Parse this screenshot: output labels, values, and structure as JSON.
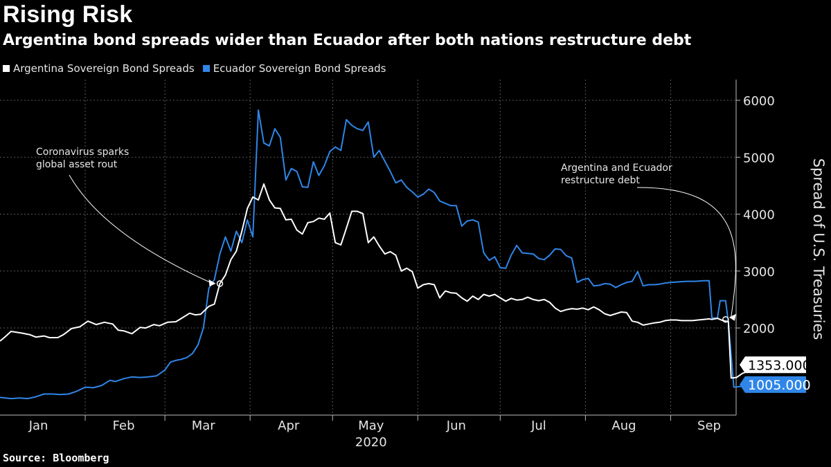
{
  "title": "Rising Risk",
  "subtitle": "Argentina bond spreads wider than Ecuador after both nations restructure debt",
  "source": "Source: Bloomberg",
  "colors": {
    "background": "#000000",
    "argentina": "#ffffff",
    "ecuador": "#2f86e8",
    "grid": "#5a5a5a"
  },
  "chart_data": {
    "type": "line",
    "ylabel": "Spread of U.S. Treasuries",
    "xlabel": "",
    "ylim": [
      600,
      6300
    ],
    "yticks": [
      2000,
      3000,
      4000,
      5000,
      6000
    ],
    "yaxis_position": "right",
    "grid": true,
    "legend_position": "top-left",
    "year_label": "2020",
    "xticks": [
      {
        "label": "Jan",
        "date": "2020-01-15"
      },
      {
        "label": "Feb",
        "date": "2020-02-15"
      },
      {
        "label": "Mar",
        "date": "2020-03-15"
      },
      {
        "label": "Apr",
        "date": "2020-04-15"
      },
      {
        "label": "May",
        "date": "2020-05-15"
      },
      {
        "label": "Jun",
        "date": "2020-06-15"
      },
      {
        "label": "Jul",
        "date": "2020-07-15"
      },
      {
        "label": "Aug",
        "date": "2020-08-15"
      },
      {
        "label": "Sep",
        "date": "2020-09-15"
      }
    ],
    "series": [
      {
        "name": "Argentina Sovereign Bond Spreads",
        "color": "#ffffff",
        "last_value_label": "1353.000",
        "points": [
          [
            "2020-01-01",
            1770
          ],
          [
            "2020-01-03",
            1850
          ],
          [
            "2020-01-05",
            1940
          ],
          [
            "2020-01-09",
            1910
          ],
          [
            "2020-01-12",
            1880
          ],
          [
            "2020-01-14",
            1840
          ],
          [
            "2020-01-17",
            1860
          ],
          [
            "2020-01-19",
            1830
          ],
          [
            "2020-01-22",
            1830
          ],
          [
            "2020-01-24",
            1880
          ],
          [
            "2020-01-27",
            1990
          ],
          [
            "2020-01-30",
            2020
          ],
          [
            "2020-02-02",
            2120
          ],
          [
            "2020-02-05",
            2060
          ],
          [
            "2020-02-08",
            2100
          ],
          [
            "2020-02-11",
            2070
          ],
          [
            "2020-02-13",
            1960
          ],
          [
            "2020-02-15",
            1950
          ],
          [
            "2020-02-18",
            1900
          ],
          [
            "2020-02-21",
            2010
          ],
          [
            "2020-02-23",
            2000
          ],
          [
            "2020-02-26",
            2060
          ],
          [
            "2020-02-28",
            2040
          ],
          [
            "2020-03-02",
            2100
          ],
          [
            "2020-03-05",
            2110
          ],
          [
            "2020-03-07",
            2170
          ],
          [
            "2020-03-10",
            2260
          ],
          [
            "2020-03-12",
            2230
          ],
          [
            "2020-03-14",
            2240
          ],
          [
            "2020-03-17",
            2380
          ],
          [
            "2020-03-19",
            2420
          ],
          [
            "2020-03-21",
            2780
          ],
          [
            "2020-03-23",
            2930
          ],
          [
            "2020-03-25",
            3200
          ],
          [
            "2020-03-27",
            3350
          ],
          [
            "2020-03-29",
            3700
          ],
          [
            "2020-03-31",
            4100
          ],
          [
            "2020-04-02",
            4300
          ],
          [
            "2020-04-04",
            4250
          ],
          [
            "2020-04-06",
            4530
          ],
          [
            "2020-04-08",
            4250
          ],
          [
            "2020-04-10",
            4110
          ],
          [
            "2020-04-12",
            4100
          ],
          [
            "2020-04-14",
            3900
          ],
          [
            "2020-04-16",
            3910
          ],
          [
            "2020-04-18",
            3720
          ],
          [
            "2020-04-20",
            3650
          ],
          [
            "2020-04-22",
            3850
          ],
          [
            "2020-04-24",
            3870
          ],
          [
            "2020-04-26",
            3930
          ],
          [
            "2020-04-28",
            3910
          ],
          [
            "2020-04-30",
            4020
          ],
          [
            "2020-05-02",
            3500
          ],
          [
            "2020-05-04",
            3460
          ],
          [
            "2020-05-06",
            3750
          ],
          [
            "2020-05-08",
            4050
          ],
          [
            "2020-05-10",
            4050
          ],
          [
            "2020-05-12",
            4010
          ],
          [
            "2020-05-14",
            3500
          ],
          [
            "2020-05-16",
            3600
          ],
          [
            "2020-05-18",
            3440
          ],
          [
            "2020-05-20",
            3300
          ],
          [
            "2020-05-22",
            3340
          ],
          [
            "2020-05-24",
            3280
          ],
          [
            "2020-05-26",
            3000
          ],
          [
            "2020-05-28",
            3050
          ],
          [
            "2020-05-30",
            2990
          ],
          [
            "2020-06-01",
            2700
          ],
          [
            "2020-06-03",
            2760
          ],
          [
            "2020-06-05",
            2780
          ],
          [
            "2020-06-07",
            2760
          ],
          [
            "2020-06-09",
            2530
          ],
          [
            "2020-06-11",
            2650
          ],
          [
            "2020-06-13",
            2620
          ],
          [
            "2020-06-15",
            2610
          ],
          [
            "2020-06-17",
            2530
          ],
          [
            "2020-06-19",
            2470
          ],
          [
            "2020-06-21",
            2560
          ],
          [
            "2020-06-23",
            2500
          ],
          [
            "2020-06-25",
            2590
          ],
          [
            "2020-06-27",
            2560
          ],
          [
            "2020-06-29",
            2590
          ],
          [
            "2020-07-01",
            2530
          ],
          [
            "2020-07-03",
            2470
          ],
          [
            "2020-07-05",
            2520
          ],
          [
            "2020-07-07",
            2490
          ],
          [
            "2020-07-09",
            2500
          ],
          [
            "2020-07-11",
            2540
          ],
          [
            "2020-07-13",
            2500
          ],
          [
            "2020-07-15",
            2480
          ],
          [
            "2020-07-17",
            2500
          ],
          [
            "2020-07-19",
            2450
          ],
          [
            "2020-07-21",
            2350
          ],
          [
            "2020-07-23",
            2290
          ],
          [
            "2020-07-25",
            2320
          ],
          [
            "2020-07-27",
            2340
          ],
          [
            "2020-07-29",
            2330
          ],
          [
            "2020-07-31",
            2350
          ],
          [
            "2020-08-02",
            2320
          ],
          [
            "2020-08-04",
            2370
          ],
          [
            "2020-08-06",
            2320
          ],
          [
            "2020-08-08",
            2250
          ],
          [
            "2020-08-10",
            2220
          ],
          [
            "2020-08-12",
            2250
          ],
          [
            "2020-08-14",
            2280
          ],
          [
            "2020-08-16",
            2270
          ],
          [
            "2020-08-18",
            2120
          ],
          [
            "2020-08-20",
            2100
          ],
          [
            "2020-08-22",
            2050
          ],
          [
            "2020-08-24",
            2070
          ],
          [
            "2020-08-26",
            2090
          ],
          [
            "2020-08-28",
            2100
          ],
          [
            "2020-08-30",
            2130
          ],
          [
            "2020-09-01",
            2140
          ],
          [
            "2020-09-03",
            2140
          ],
          [
            "2020-09-05",
            2130
          ],
          [
            "2020-09-07",
            2130
          ],
          [
            "2020-09-09",
            2130
          ],
          [
            "2020-09-11",
            2140
          ],
          [
            "2020-09-13",
            2150
          ],
          [
            "2020-09-15",
            2160
          ],
          [
            "2020-09-16",
            2150
          ],
          [
            "2020-09-18",
            2170
          ],
          [
            "2020-09-20",
            2130
          ],
          [
            "2020-09-22",
            2110
          ],
          [
            "2020-09-23",
            1120
          ],
          [
            "2020-09-25",
            1130
          ],
          [
            "2020-09-27",
            1200
          ],
          [
            "2020-09-30",
            1260
          ],
          [
            "2020-10-02",
            1353
          ]
        ]
      },
      {
        "name": "Ecuador Sovereign Bond Spreads",
        "color": "#2f86e8",
        "last_value_label": "1005.000",
        "points": [
          [
            "2020-01-01",
            780
          ],
          [
            "2020-01-03",
            770
          ],
          [
            "2020-01-05",
            760
          ],
          [
            "2020-01-08",
            770
          ],
          [
            "2020-01-11",
            760
          ],
          [
            "2020-01-14",
            790
          ],
          [
            "2020-01-17",
            840
          ],
          [
            "2020-01-20",
            840
          ],
          [
            "2020-01-23",
            830
          ],
          [
            "2020-01-26",
            840
          ],
          [
            "2020-01-29",
            890
          ],
          [
            "2020-02-01",
            960
          ],
          [
            "2020-02-04",
            950
          ],
          [
            "2020-02-07",
            990
          ],
          [
            "2020-02-10",
            1080
          ],
          [
            "2020-02-12",
            1060
          ],
          [
            "2020-02-15",
            1110
          ],
          [
            "2020-02-18",
            1140
          ],
          [
            "2020-02-21",
            1130
          ],
          [
            "2020-02-24",
            1140
          ],
          [
            "2020-02-27",
            1160
          ],
          [
            "2020-03-01",
            1260
          ],
          [
            "2020-03-03",
            1400
          ],
          [
            "2020-03-05",
            1430
          ],
          [
            "2020-03-07",
            1450
          ],
          [
            "2020-03-09",
            1480
          ],
          [
            "2020-03-11",
            1550
          ],
          [
            "2020-03-13",
            1700
          ],
          [
            "2020-03-15",
            2000
          ],
          [
            "2020-03-17",
            2700
          ],
          [
            "2020-03-19",
            2850
          ],
          [
            "2020-03-21",
            3300
          ],
          [
            "2020-03-23",
            3600
          ],
          [
            "2020-03-25",
            3350
          ],
          [
            "2020-03-27",
            3700
          ],
          [
            "2020-03-29",
            3500
          ],
          [
            "2020-03-31",
            3900
          ],
          [
            "2020-04-02",
            3600
          ],
          [
            "2020-04-04",
            5830
          ],
          [
            "2020-04-06",
            5250
          ],
          [
            "2020-04-08",
            5200
          ],
          [
            "2020-04-10",
            5500
          ],
          [
            "2020-04-12",
            5350
          ],
          [
            "2020-04-14",
            4600
          ],
          [
            "2020-04-16",
            4800
          ],
          [
            "2020-04-18",
            4750
          ],
          [
            "2020-04-20",
            4480
          ],
          [
            "2020-04-22",
            4470
          ],
          [
            "2020-04-24",
            4920
          ],
          [
            "2020-04-26",
            4680
          ],
          [
            "2020-04-28",
            4850
          ],
          [
            "2020-04-30",
            5100
          ],
          [
            "2020-05-02",
            5180
          ],
          [
            "2020-05-04",
            5120
          ],
          [
            "2020-05-06",
            5660
          ],
          [
            "2020-05-08",
            5560
          ],
          [
            "2020-05-10",
            5500
          ],
          [
            "2020-05-12",
            5470
          ],
          [
            "2020-05-14",
            5620
          ],
          [
            "2020-05-16",
            5000
          ],
          [
            "2020-05-18",
            5120
          ],
          [
            "2020-05-20",
            4930
          ],
          [
            "2020-05-22",
            4750
          ],
          [
            "2020-05-24",
            4550
          ],
          [
            "2020-05-26",
            4600
          ],
          [
            "2020-05-28",
            4470
          ],
          [
            "2020-05-30",
            4390
          ],
          [
            "2020-06-01",
            4300
          ],
          [
            "2020-06-03",
            4350
          ],
          [
            "2020-06-05",
            4440
          ],
          [
            "2020-06-07",
            4380
          ],
          [
            "2020-06-09",
            4230
          ],
          [
            "2020-06-11",
            4190
          ],
          [
            "2020-06-13",
            4150
          ],
          [
            "2020-06-15",
            4150
          ],
          [
            "2020-06-17",
            3790
          ],
          [
            "2020-06-19",
            3880
          ],
          [
            "2020-06-21",
            3900
          ],
          [
            "2020-06-23",
            3860
          ],
          [
            "2020-06-25",
            3320
          ],
          [
            "2020-06-27",
            3190
          ],
          [
            "2020-06-29",
            3250
          ],
          [
            "2020-07-01",
            3060
          ],
          [
            "2020-07-03",
            3050
          ],
          [
            "2020-07-05",
            3280
          ],
          [
            "2020-07-07",
            3450
          ],
          [
            "2020-07-09",
            3320
          ],
          [
            "2020-07-11",
            3310
          ],
          [
            "2020-07-13",
            3300
          ],
          [
            "2020-07-15",
            3220
          ],
          [
            "2020-07-17",
            3200
          ],
          [
            "2020-07-19",
            3280
          ],
          [
            "2020-07-21",
            3390
          ],
          [
            "2020-07-23",
            3380
          ],
          [
            "2020-07-25",
            3270
          ],
          [
            "2020-07-27",
            3230
          ],
          [
            "2020-07-29",
            2800
          ],
          [
            "2020-07-31",
            2850
          ],
          [
            "2020-08-02",
            2870
          ],
          [
            "2020-08-04",
            2740
          ],
          [
            "2020-08-06",
            2750
          ],
          [
            "2020-08-08",
            2780
          ],
          [
            "2020-08-10",
            2770
          ],
          [
            "2020-08-12",
            2710
          ],
          [
            "2020-08-14",
            2760
          ],
          [
            "2020-08-16",
            2800
          ],
          [
            "2020-08-18",
            2820
          ],
          [
            "2020-08-20",
            2990
          ],
          [
            "2020-08-22",
            2740
          ],
          [
            "2020-08-24",
            2760
          ],
          [
            "2020-08-26",
            2760
          ],
          [
            "2020-08-28",
            2770
          ],
          [
            "2020-08-30",
            2790
          ],
          [
            "2020-09-01",
            2800
          ],
          [
            "2020-09-04",
            2810
          ],
          [
            "2020-09-07",
            2820
          ],
          [
            "2020-09-10",
            2820
          ],
          [
            "2020-09-13",
            2830
          ],
          [
            "2020-09-15",
            2830
          ],
          [
            "2020-09-16",
            2180
          ],
          [
            "2020-09-18",
            2170
          ],
          [
            "2020-09-19",
            2480
          ],
          [
            "2020-09-21",
            2480
          ],
          [
            "2020-09-22",
            2100
          ],
          [
            "2020-09-24",
            960
          ],
          [
            "2020-09-26",
            970
          ],
          [
            "2020-09-29",
            980
          ],
          [
            "2020-10-02",
            1005
          ]
        ]
      }
    ],
    "annotations": [
      {
        "text": [
          "Coronavirus sparks",
          "global asset rout"
        ],
        "date": "2020-03-21",
        "value": 2780
      },
      {
        "text": [
          "Argentina and Ecuador",
          "restructure debt"
        ],
        "date": "2020-09-21",
        "value": 2150
      }
    ]
  }
}
